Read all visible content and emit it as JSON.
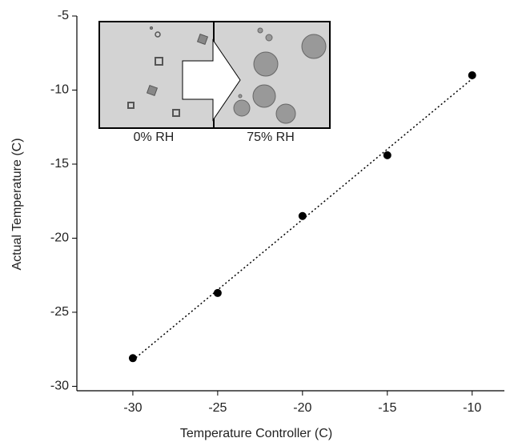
{
  "chart_data": {
    "type": "scatter",
    "x_label": "Temperature Controller (C)",
    "y_label": "Actual Temperature (C)",
    "x": [
      -30,
      -25,
      -20,
      -15,
      -10
    ],
    "series": [
      {
        "color": "#000000",
        "values": [
          -28.1,
          -23.7,
          -18.5,
          -14.4,
          -9.0
        ]
      }
    ],
    "trendline": true,
    "xlim": [
      -33.3,
      -8.1
    ],
    "ylim": [
      -30.3,
      -5
    ],
    "xticks": [
      -30,
      -25,
      -20,
      -15,
      -10
    ],
    "yticks": [
      -30,
      -25,
      -20,
      -15,
      -10,
      -5
    ],
    "inset_labels": [
      "0% RH",
      "75% RH"
    ]
  }
}
